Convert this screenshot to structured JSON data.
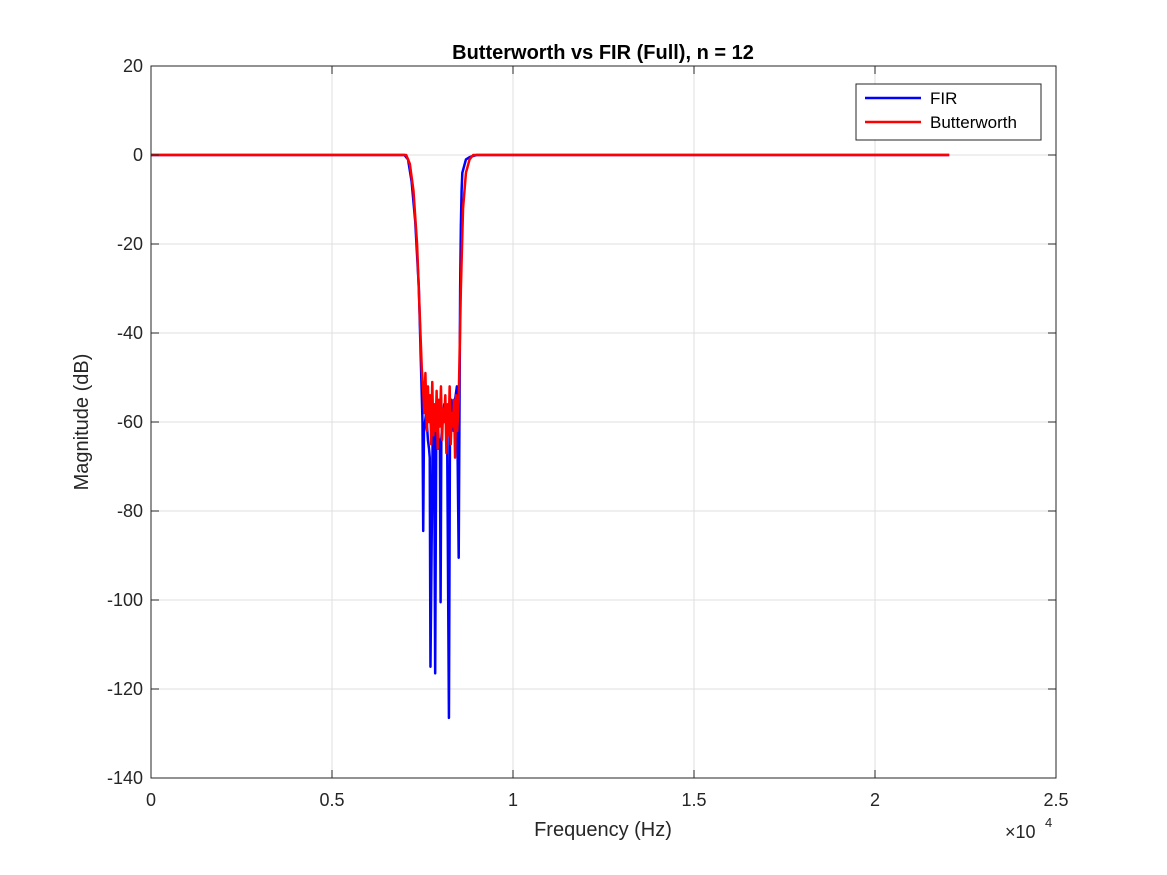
{
  "chart_data": {
    "type": "line",
    "title": "Butterworth vs FIR (Full), n = 12",
    "xlabel": "Frequency (Hz)",
    "ylabel": "Magnitude (dB)",
    "x_exponent_label": "×10",
    "x_exponent_power": "4",
    "xlim": [
      0,
      25000
    ],
    "ylim": [
      -140,
      20
    ],
    "xticks": [
      0,
      5000,
      10000,
      15000,
      20000,
      25000
    ],
    "xtick_labels": [
      "0",
      "0.5",
      "1",
      "1.5",
      "2",
      "2.5"
    ],
    "yticks": [
      20,
      0,
      -20,
      -40,
      -60,
      -80,
      -100,
      -120,
      -140
    ],
    "ytick_labels": [
      "20",
      "0",
      "-20",
      "-40",
      "-60",
      "-80",
      "-100",
      "-120",
      "-140"
    ],
    "grid": true,
    "legend_position": "top-right",
    "series": [
      {
        "name": "FIR",
        "color": "#0000ff",
        "x": [
          0,
          7000,
          7100,
          7200,
          7300,
          7400,
          7450,
          7500,
          7520,
          7540,
          7600,
          7650,
          7680,
          7700,
          7720,
          7780,
          7820,
          7850,
          7880,
          7920,
          7950,
          7980,
          8000,
          8020,
          8050,
          8100,
          8130,
          8180,
          8230,
          8260,
          8280,
          8300,
          8330,
          8360,
          8400,
          8450,
          8500,
          8540,
          8560,
          8580,
          8600,
          8700,
          8800,
          8900,
          9000,
          22050
        ],
        "y": [
          0,
          0,
          -1,
          -6,
          -15,
          -30,
          -45,
          -60,
          -84.5,
          -62,
          -58,
          -64,
          -66,
          -68,
          -115,
          -64,
          -60,
          -116.5,
          -62,
          -58,
          -66,
          -64,
          -100.5,
          -64,
          -60,
          -56,
          -58,
          -62,
          -126.5,
          -60,
          -57,
          -55,
          -58,
          -62,
          -55,
          -52,
          -90.5,
          -30,
          -16,
          -8,
          -4,
          -1,
          -0.5,
          -0.2,
          0,
          0
        ]
      },
      {
        "name": "Butterworth",
        "color": "#ff0000",
        "x": [
          0,
          7050,
          7150,
          7250,
          7350,
          7420,
          7480,
          7520,
          7550,
          7580,
          7620,
          7650,
          7680,
          7710,
          7740,
          7770,
          7800,
          7830,
          7860,
          7890,
          7920,
          7950,
          7980,
          8010,
          8040,
          8070,
          8100,
          8130,
          8160,
          8190,
          8220,
          8250,
          8280,
          8310,
          8340,
          8370,
          8400,
          8430,
          8460,
          8500,
          8560,
          8620,
          8700,
          8800,
          8900,
          22050
        ],
        "y": [
          0,
          0,
          -2,
          -8,
          -20,
          -35,
          -48,
          -53,
          -58,
          -49,
          -62,
          -52,
          -60,
          -54,
          -65,
          -51,
          -63,
          -56,
          -62,
          -53,
          -66,
          -55,
          -61,
          -52,
          -64,
          -57,
          -60,
          -54,
          -67,
          -56,
          -63,
          -52,
          -65,
          -58,
          -61,
          -55,
          -68,
          -54,
          -62,
          -55,
          -30,
          -12,
          -4,
          -1,
          0,
          0
        ]
      }
    ]
  }
}
